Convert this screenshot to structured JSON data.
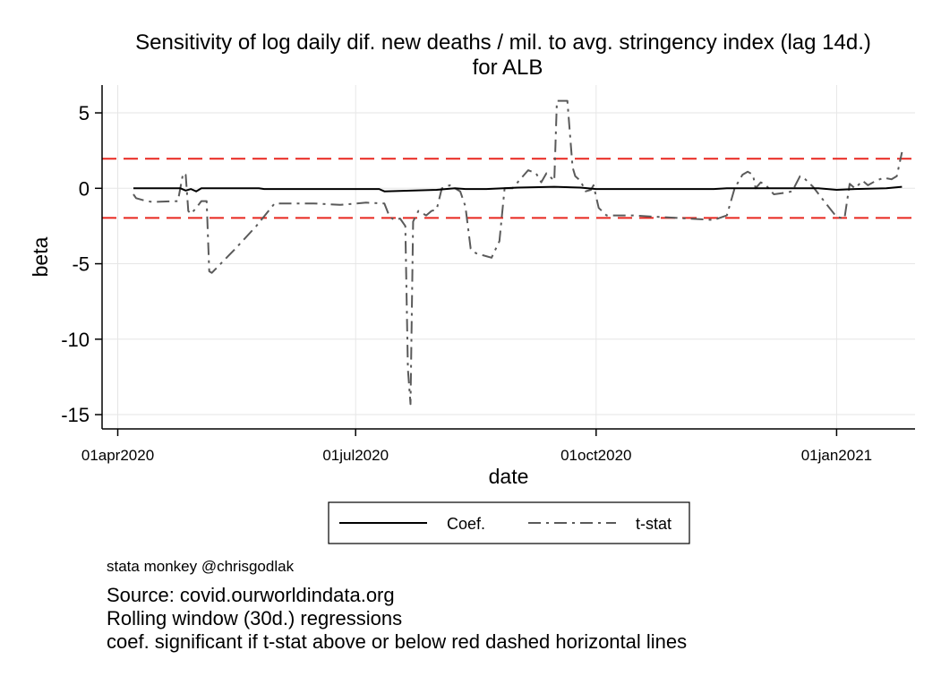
{
  "chart_data": {
    "type": "line",
    "title": "Sensitivity of log daily dif. new deaths / mil. to avg. stringency index (lag 14d.)",
    "subtitle": "for ALB",
    "xlabel": "date",
    "ylabel": "beta",
    "x_ticks": [
      {
        "date": "2020-04-01",
        "label": "01apr2020"
      },
      {
        "date": "2020-07-01",
        "label": "01jul2020"
      },
      {
        "date": "2020-10-01",
        "label": "01oct2020"
      },
      {
        "date": "2021-01-01",
        "label": "01jan2021"
      }
    ],
    "y_ticks": [
      5,
      0,
      -5,
      -10,
      -15
    ],
    "xlim": [
      "2020-03-26",
      "2021-01-31"
    ],
    "ylim": [
      -16,
      7
    ],
    "grid": true,
    "reference_lines": [
      {
        "y": 1.96,
        "style": "dashed",
        "color": "#e8271f"
      },
      {
        "y": -1.96,
        "style": "dashed",
        "color": "#e8271f"
      }
    ],
    "series": [
      {
        "name": "Coef.",
        "color": "#000000",
        "style": "solid",
        "points": [
          [
            "2020-04-07",
            0.0
          ],
          [
            "2020-04-25",
            0.0
          ],
          [
            "2020-04-27",
            -0.15
          ],
          [
            "2020-04-29",
            -0.05
          ],
          [
            "2020-05-01",
            -0.2
          ],
          [
            "2020-05-03",
            0.0
          ],
          [
            "2020-05-25",
            0.0
          ],
          [
            "2020-05-27",
            -0.05
          ],
          [
            "2020-07-10",
            -0.05
          ],
          [
            "2020-07-12",
            -0.2
          ],
          [
            "2020-08-01",
            -0.1
          ],
          [
            "2020-08-08",
            0.0
          ],
          [
            "2020-08-12",
            -0.05
          ],
          [
            "2020-08-20",
            -0.05
          ],
          [
            "2020-09-01",
            0.05
          ],
          [
            "2020-09-15",
            0.1
          ],
          [
            "2020-09-25",
            0.05
          ],
          [
            "2020-10-01",
            -0.05
          ],
          [
            "2020-11-15",
            -0.05
          ],
          [
            "2020-11-20",
            0.0
          ],
          [
            "2020-12-25",
            0.0
          ],
          [
            "2021-01-01",
            -0.1
          ],
          [
            "2021-01-08",
            -0.05
          ],
          [
            "2021-01-20",
            0.0
          ],
          [
            "2021-01-26",
            0.1
          ]
        ]
      },
      {
        "name": "t-stat",
        "color": "#5a5a5a",
        "style": "dashdot",
        "points": [
          [
            "2020-04-07",
            -0.4
          ],
          [
            "2020-04-08",
            -0.65
          ],
          [
            "2020-04-11",
            -0.8
          ],
          [
            "2020-04-14",
            -0.9
          ],
          [
            "2020-04-24",
            -0.85
          ],
          [
            "2020-04-26",
            1.0
          ],
          [
            "2020-04-27",
            0.9
          ],
          [
            "2020-04-28",
            -1.5
          ],
          [
            "2020-04-29",
            -1.7
          ],
          [
            "2020-05-01",
            -1.3
          ],
          [
            "2020-05-03",
            -0.85
          ],
          [
            "2020-05-05",
            -0.85
          ],
          [
            "2020-05-06",
            -5.5
          ],
          [
            "2020-05-07",
            -5.6
          ],
          [
            "2020-05-16",
            -4.0
          ],
          [
            "2020-05-24",
            -2.5
          ],
          [
            "2020-05-31",
            -1.0
          ],
          [
            "2020-06-15",
            -1.0
          ],
          [
            "2020-06-25",
            -1.1
          ],
          [
            "2020-07-05",
            -0.95
          ],
          [
            "2020-07-12",
            -1.0
          ],
          [
            "2020-07-14",
            -1.9
          ],
          [
            "2020-07-16",
            -2.1
          ],
          [
            "2020-07-18",
            -2.0
          ],
          [
            "2020-07-20",
            -2.5
          ],
          [
            "2020-07-21",
            -12.0
          ],
          [
            "2020-07-22",
            -14.3
          ],
          [
            "2020-07-23",
            -2.2
          ],
          [
            "2020-07-25",
            -1.5
          ],
          [
            "2020-07-28",
            -1.8
          ],
          [
            "2020-07-30",
            -1.5
          ],
          [
            "2020-08-01",
            -1.4
          ],
          [
            "2020-08-03",
            0.0
          ],
          [
            "2020-08-06",
            0.2
          ],
          [
            "2020-08-10",
            -0.2
          ],
          [
            "2020-08-12",
            -1.2
          ],
          [
            "2020-08-14",
            -4.0
          ],
          [
            "2020-08-16",
            -4.3
          ],
          [
            "2020-08-22",
            -4.6
          ],
          [
            "2020-08-25",
            -3.5
          ],
          [
            "2020-08-27",
            0.0
          ],
          [
            "2020-08-30",
            0.0
          ],
          [
            "2020-09-02",
            0.6
          ],
          [
            "2020-09-05",
            1.2
          ],
          [
            "2020-09-08",
            1.0
          ],
          [
            "2020-09-10",
            0.4
          ],
          [
            "2020-09-12",
            1.0
          ],
          [
            "2020-09-15",
            0.5
          ],
          [
            "2020-09-16",
            5.8
          ],
          [
            "2020-09-20",
            5.8
          ],
          [
            "2020-09-22",
            1.4
          ],
          [
            "2020-09-23",
            0.8
          ],
          [
            "2020-09-25",
            0.5
          ],
          [
            "2020-09-27",
            -0.2
          ],
          [
            "2020-09-29",
            -0.1
          ],
          [
            "2020-09-30",
            0.2
          ],
          [
            "2020-10-02",
            -1.3
          ],
          [
            "2020-10-05",
            -1.8
          ],
          [
            "2020-10-15",
            -1.8
          ],
          [
            "2020-10-25",
            -1.9
          ],
          [
            "2020-11-05",
            -2.0
          ],
          [
            "2020-11-15",
            -2.1
          ],
          [
            "2020-11-20",
            -1.8
          ],
          [
            "2020-11-23",
            0.0
          ],
          [
            "2020-11-26",
            0.9
          ],
          [
            "2020-11-28",
            1.1
          ],
          [
            "2020-11-30",
            0.9
          ],
          [
            "2020-12-01",
            0.0
          ],
          [
            "2020-12-03",
            0.4
          ],
          [
            "2020-12-05",
            0.2
          ],
          [
            "2020-12-08",
            -0.4
          ],
          [
            "2020-12-12",
            -0.3
          ],
          [
            "2020-12-15",
            -0.2
          ],
          [
            "2020-12-18",
            0.8
          ],
          [
            "2020-12-20",
            0.6
          ],
          [
            "2020-12-23",
            0.1
          ],
          [
            "2020-12-27",
            -0.8
          ],
          [
            "2021-01-01",
            -1.9
          ],
          [
            "2021-01-04",
            -2.0
          ],
          [
            "2021-01-06",
            0.3
          ],
          [
            "2021-01-08",
            0.0
          ],
          [
            "2021-01-11",
            0.5
          ],
          [
            "2021-01-13",
            0.2
          ],
          [
            "2021-01-16",
            0.5
          ],
          [
            "2021-01-19",
            0.7
          ],
          [
            "2021-01-22",
            0.6
          ],
          [
            "2021-01-24",
            0.8
          ],
          [
            "2021-01-26",
            2.4
          ]
        ]
      }
    ],
    "legend": {
      "position": "bottom",
      "entries": [
        "Coef.",
        "t-stat"
      ]
    }
  },
  "notes": {
    "credit": "stata monkey @chrisgodlak",
    "lines": [
      "Source: covid.ourworldindata.org",
      "Rolling window (30d.) regressions",
      "coef. significant if t-stat above or below red dashed horizontal lines"
    ]
  }
}
